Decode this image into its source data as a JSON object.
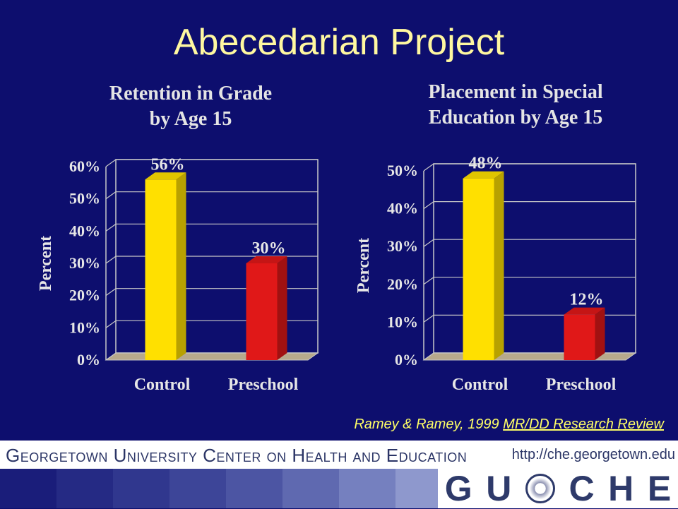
{
  "slide": {
    "title": "Abecedarian Project"
  },
  "chart_data": [
    {
      "type": "bar",
      "title": "Retention in Grade by Age 15",
      "title_lines": [
        "Retention in Grade",
        "by Age 15"
      ],
      "ylabel": "Percent",
      "categories": [
        "Control",
        "Preschool"
      ],
      "values": [
        56,
        30
      ],
      "value_labels": [
        "56%",
        "30%"
      ],
      "bar_colors": [
        "#ffe000",
        "#e01818"
      ],
      "ylim": [
        0,
        60
      ],
      "yticks": [
        0,
        10,
        20,
        30,
        40,
        50,
        60
      ],
      "ytick_labels": [
        "0%",
        "10%",
        "20%",
        "30%",
        "40%",
        "50%",
        "60%"
      ],
      "grid": true
    },
    {
      "type": "bar",
      "title": "Placement in Special Education by Age 15",
      "title_lines": [
        "Placement in Special",
        "Education by Age 15"
      ],
      "ylabel": "Percent",
      "categories": [
        "Control",
        "Preschool"
      ],
      "values": [
        48,
        12
      ],
      "value_labels": [
        "48%",
        "12%"
      ],
      "bar_colors": [
        "#ffe000",
        "#e01818"
      ],
      "ylim": [
        0,
        50
      ],
      "yticks": [
        0,
        10,
        20,
        30,
        40,
        50
      ],
      "ytick_labels": [
        "0%",
        "10%",
        "20%",
        "30%",
        "40%",
        "50%"
      ],
      "grid": true
    }
  ],
  "citation": {
    "authors": "Ramey & Ramey, 1999 ",
    "journal": "MR/DD Research Review"
  },
  "footer": {
    "organization": "Georgetown University Center on Health and Education",
    "url": "http://che.georgetown.edu",
    "logo_letters": [
      "G",
      "U",
      "C",
      "H",
      "E"
    ]
  },
  "colors": {
    "background": "#0d0e6e",
    "title": "#fff8a0",
    "citation": "#ffff66",
    "footer_text": "#2b3566",
    "strip_tiles": [
      "#1a1d7a",
      "#252a84",
      "#30378e",
      "#3d4598",
      "#4c55a3",
      "#5f69b0",
      "#7580bf",
      "#8e98cd",
      "#a8b0da",
      "#c2c8e6",
      "#dadeef",
      "#ecedf6"
    ]
  }
}
